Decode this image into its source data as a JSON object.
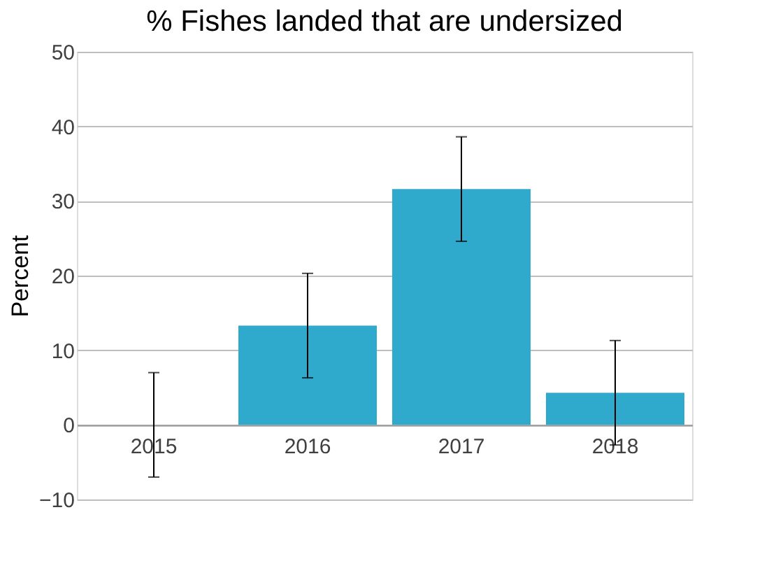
{
  "chart_data": {
    "type": "bar",
    "title": "% Fishes landed that are undersized",
    "ylabel": "Percent",
    "categories": [
      "2015",
      "2016",
      "2017",
      "2018"
    ],
    "values": [
      0,
      13.3,
      31.6,
      4.3
    ],
    "errors": [
      7,
      7,
      7,
      7
    ],
    "color": "#2fa9cc",
    "ylim": [
      -10,
      50
    ],
    "yticks": [
      -10,
      0,
      10,
      20,
      30,
      40,
      50
    ],
    "grid": "y"
  }
}
